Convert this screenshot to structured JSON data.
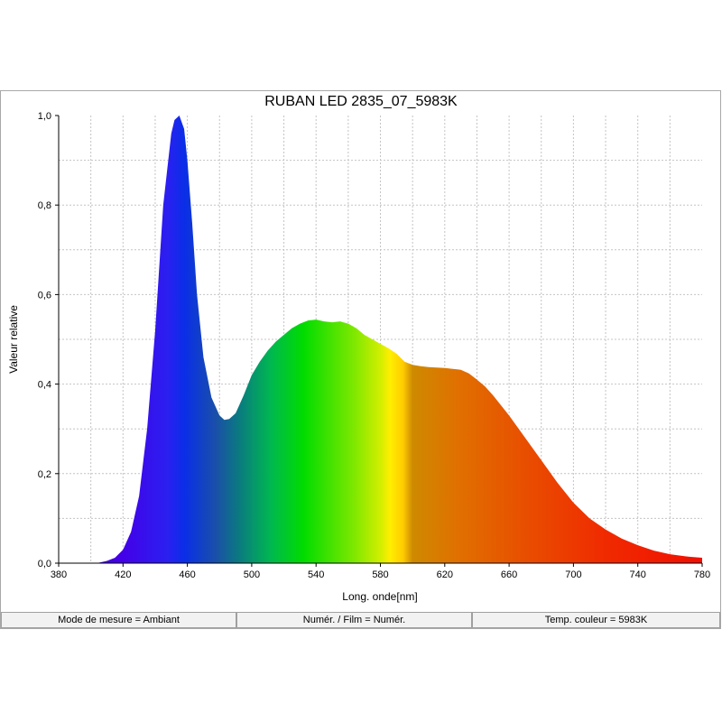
{
  "chart_data": {
    "type": "area",
    "title": "RUBAN LED 2835_07_5983K",
    "xlabel": "Long. onde[nm]",
    "ylabel": "Valeur relative",
    "xlim": [
      380,
      780
    ],
    "ylim": [
      0,
      1
    ],
    "x_ticks": [
      "380",
      "420",
      "460",
      "500",
      "540",
      "580",
      "620",
      "660",
      "700",
      "740",
      "780"
    ],
    "y_ticks": [
      "0,0",
      "0,2",
      "0,4",
      "0,6",
      "0,8",
      "1,0"
    ],
    "grid": true,
    "fill": "visible-spectrum-gradient",
    "series": [
      {
        "x": [
          380,
          390,
          400,
          405,
          410,
          415,
          420,
          425,
          430,
          435,
          440,
          445,
          450,
          452,
          455,
          458,
          460,
          463,
          466,
          470,
          475,
          480,
          483,
          486,
          490,
          495,
          500,
          505,
          510,
          515,
          520,
          525,
          530,
          535,
          540,
          545,
          550,
          555,
          560,
          565,
          570,
          575,
          580,
          585,
          590,
          595,
          600,
          605,
          610,
          615,
          620,
          625,
          630,
          635,
          640,
          645,
          650,
          660,
          670,
          680,
          690,
          700,
          710,
          720,
          730,
          740,
          750,
          760,
          770,
          780
        ],
        "y": [
          0,
          0,
          0,
          0.001,
          0.005,
          0.012,
          0.03,
          0.07,
          0.15,
          0.3,
          0.52,
          0.8,
          0.96,
          0.99,
          1.0,
          0.97,
          0.9,
          0.76,
          0.6,
          0.46,
          0.37,
          0.33,
          0.32,
          0.322,
          0.335,
          0.375,
          0.42,
          0.45,
          0.475,
          0.495,
          0.51,
          0.525,
          0.535,
          0.542,
          0.544,
          0.54,
          0.538,
          0.54,
          0.535,
          0.525,
          0.51,
          0.5,
          0.49,
          0.48,
          0.468,
          0.45,
          0.443,
          0.44,
          0.438,
          0.437,
          0.436,
          0.434,
          0.432,
          0.424,
          0.41,
          0.395,
          0.375,
          0.33,
          0.28,
          0.23,
          0.18,
          0.135,
          0.1,
          0.075,
          0.055,
          0.04,
          0.028,
          0.02,
          0.015,
          0.012
        ]
      }
    ]
  },
  "status_bar": [
    "Mode de mesure = Ambiant",
    "Numér. / Film = Numér.",
    "Temp. couleur = 5983K"
  ]
}
